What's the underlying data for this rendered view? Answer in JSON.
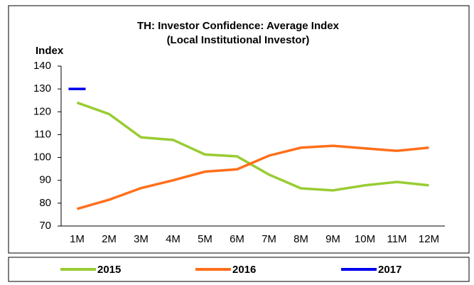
{
  "chart_data": {
    "type": "line",
    "title": "TH: Investor Confidence: Average Index",
    "subtitle": "(Local Institutional Investor)",
    "y_label": "Index",
    "categories": [
      "1M",
      "2M",
      "3M",
      "4M",
      "5M",
      "6M",
      "7M",
      "8M",
      "9M",
      "10M",
      "11M",
      "12M"
    ],
    "series": [
      {
        "name": "2015",
        "color": "#99cc33",
        "values": [
          124,
          119,
          108.8,
          107.7,
          101.3,
          100.5,
          92.5,
          86.5,
          85.6,
          87.8,
          89.3,
          87.8
        ]
      },
      {
        "name": "2016",
        "color": "#ff6f1a",
        "values": [
          77.5,
          81.5,
          86.6,
          90,
          93.8,
          94.8,
          100.8,
          104.3,
          105.1,
          104,
          102.9,
          104.3
        ]
      },
      {
        "name": "2017",
        "color": "#0000ee",
        "values": [
          130,
          null,
          null,
          null,
          null,
          null,
          null,
          null,
          null,
          null,
          null,
          null
        ]
      }
    ],
    "ylim": [
      70,
      140
    ],
    "yticks": [
      70,
      80,
      90,
      100,
      110,
      120,
      130,
      140
    ]
  }
}
